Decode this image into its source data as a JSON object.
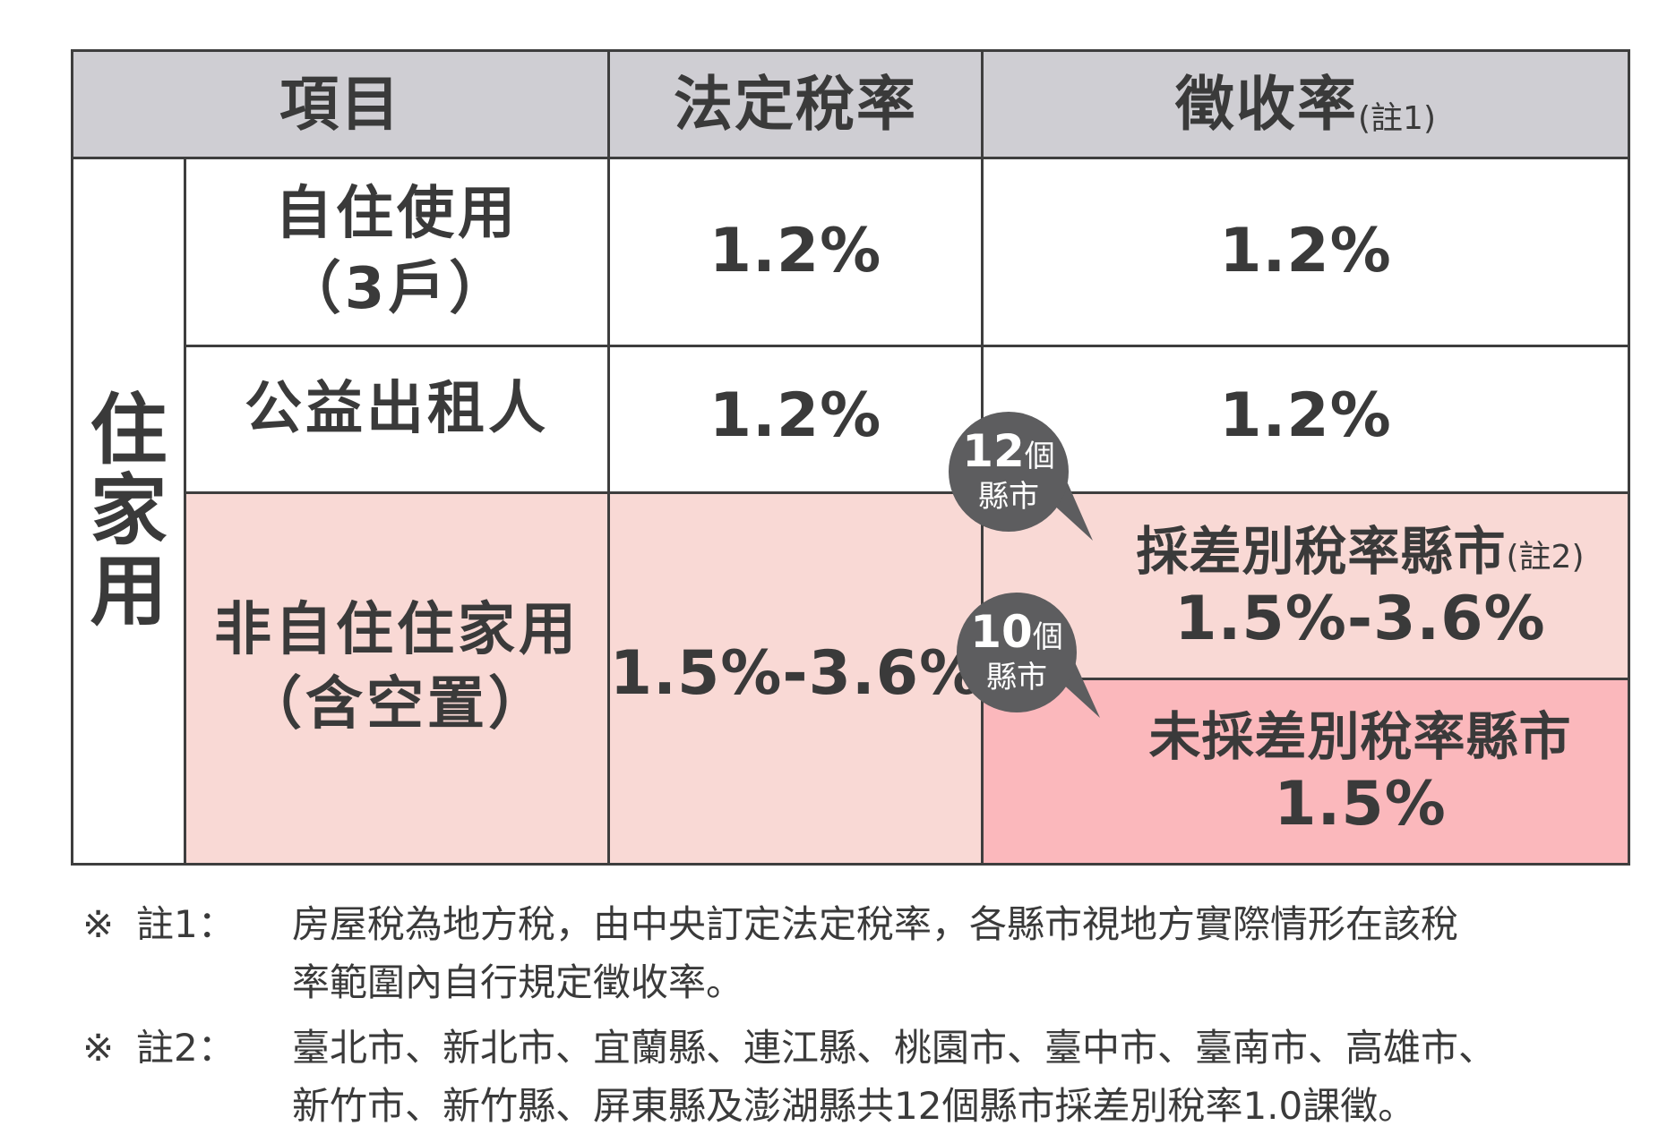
{
  "header": {
    "col1": "項目",
    "col2": "法定稅率",
    "col3": "徵收率",
    "col3_note": "(註1)"
  },
  "group_label": [
    "住",
    "家",
    "用"
  ],
  "rows": [
    {
      "item_line1": "自住使用",
      "item_line2": "（3戶）",
      "legal_rate": "1.2%",
      "collection_rate": "1.2%"
    },
    {
      "item_line1": "公益出租人",
      "legal_rate": "1.2%",
      "collection_rate": "1.2%"
    },
    {
      "item_line1": "非自住住家用",
      "item_line2": "（含空置）",
      "legal_rate": "1.5%-3.6%"
    }
  ],
  "split": {
    "upper": {
      "label": "採差別稅率縣市",
      "note": "(註2)",
      "rate": "1.5%-3.6%"
    },
    "lower": {
      "label": "未採差別稅率縣市",
      "rate": "1.5%"
    }
  },
  "bubbles": [
    {
      "num": "12",
      "unit": "個",
      "line2": "縣市"
    },
    {
      "num": "10",
      "unit": "個",
      "line2": "縣市"
    }
  ],
  "notes": [
    {
      "mark": "※",
      "key": "註1：",
      "lines": [
        "房屋稅為地方稅，由中央訂定法定稅率，各縣市視地方實際情形在該稅",
        "率範圍內自行規定徵收率。"
      ]
    },
    {
      "mark": "※",
      "key": "註2：",
      "lines": [
        "臺北市、新北市、宜蘭縣、連江縣、桃園市、臺中市、臺南市、高雄市、",
        "新竹市、新竹縣、屏東縣及澎湖縣共12個縣市採差別稅率1.0課徵。"
      ]
    }
  ],
  "colors": {
    "header_bg": "#cfced3",
    "pink_bg": "#f9d9d5",
    "pink_strong_bg": "#fbb8bc",
    "bubble_bg": "#5d5d5f",
    "border": "#3e3e3e"
  }
}
